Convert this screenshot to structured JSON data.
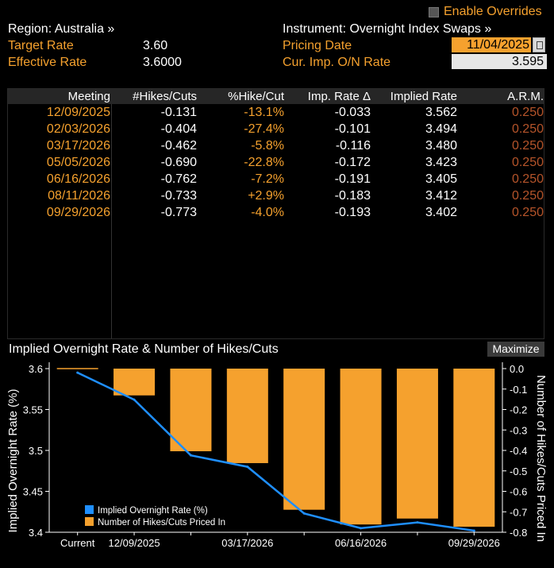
{
  "header": {
    "region_label": "Region: Australia »",
    "instrument_label": "Instrument: Overnight Index Swaps »",
    "enable_overrides": "Enable Overrides",
    "target_rate_label": "Target Rate",
    "target_rate_value": "3.60",
    "effective_rate_label": "Effective Rate",
    "effective_rate_value": "3.6000",
    "pricing_date_label": "Pricing Date",
    "pricing_date_value": "11/04/2025",
    "cur_imp_label": "Cur. Imp. O/N Rate",
    "cur_imp_value": "3.595"
  },
  "table": {
    "columns": [
      "Meeting",
      "#Hikes/Cuts",
      "%Hike/Cut",
      "Imp. Rate Δ",
      "Implied Rate",
      "A.R.M."
    ],
    "rows": [
      {
        "meeting": "12/09/2025",
        "hikes": "-0.131",
        "pct": "-13.1%",
        "delta": "-0.033",
        "implied": "3.562",
        "arm": "0.250"
      },
      {
        "meeting": "02/03/2026",
        "hikes": "-0.404",
        "pct": "-27.4%",
        "delta": "-0.101",
        "implied": "3.494",
        "arm": "0.250"
      },
      {
        "meeting": "03/17/2026",
        "hikes": "-0.462",
        "pct": "-5.8%",
        "delta": "-0.116",
        "implied": "3.480",
        "arm": "0.250"
      },
      {
        "meeting": "05/05/2026",
        "hikes": "-0.690",
        "pct": "-22.8%",
        "delta": "-0.172",
        "implied": "3.423",
        "arm": "0.250"
      },
      {
        "meeting": "06/16/2026",
        "hikes": "-0.762",
        "pct": "-7.2%",
        "delta": "-0.191",
        "implied": "3.405",
        "arm": "0.250"
      },
      {
        "meeting": "08/11/2026",
        "hikes": "-0.733",
        "pct": "+2.9%",
        "delta": "-0.183",
        "implied": "3.412",
        "arm": "0.250"
      },
      {
        "meeting": "09/29/2026",
        "hikes": "-0.773",
        "pct": "-4.0%",
        "delta": "-0.193",
        "implied": "3.402",
        "arm": "0.250"
      }
    ]
  },
  "chart_panel": {
    "title": "Implied Overnight Rate & Number of Hikes/Cuts",
    "maximize_label": "Maximize"
  },
  "chart_data": {
    "type": "bar",
    "categories": [
      "Current",
      "12/09/2025",
      "02/03/2026",
      "03/17/2026",
      "05/05/2026",
      "06/16/2026",
      "08/11/2026",
      "09/29/2026"
    ],
    "x_tick_labels": [
      "Current",
      "12/09/2025",
      "03/17/2026",
      "06/16/2026",
      "09/29/2026"
    ],
    "series": [
      {
        "name": "Implied Overnight Rate (%)",
        "type": "line",
        "axis": "left",
        "color": "#1f8fff",
        "values": [
          3.595,
          3.562,
          3.494,
          3.48,
          3.423,
          3.405,
          3.412,
          3.402
        ]
      },
      {
        "name": "Number of Hikes/Cuts Priced In",
        "type": "bar",
        "axis": "right",
        "color": "#f5a12e",
        "values": [
          0,
          -0.131,
          -0.404,
          -0.462,
          -0.69,
          -0.762,
          -0.733,
          -0.773
        ]
      }
    ],
    "ylabel_left": "Implied Overnight Rate (%)",
    "ylabel_right": "Number of Hikes/Cuts Priced In",
    "ylim_left": [
      3.4,
      3.6
    ],
    "yticks_left": [
      "3.6",
      "3.55",
      "3.5",
      "3.45",
      "3.4"
    ],
    "ylim_right": [
      -0.8,
      0.0
    ],
    "yticks_right": [
      "0.0",
      "-0.1",
      "-0.2",
      "-0.3",
      "-0.4",
      "-0.5",
      "-0.6",
      "-0.7",
      "-0.8"
    ],
    "legend_position": "bottom-left",
    "grid": false
  }
}
